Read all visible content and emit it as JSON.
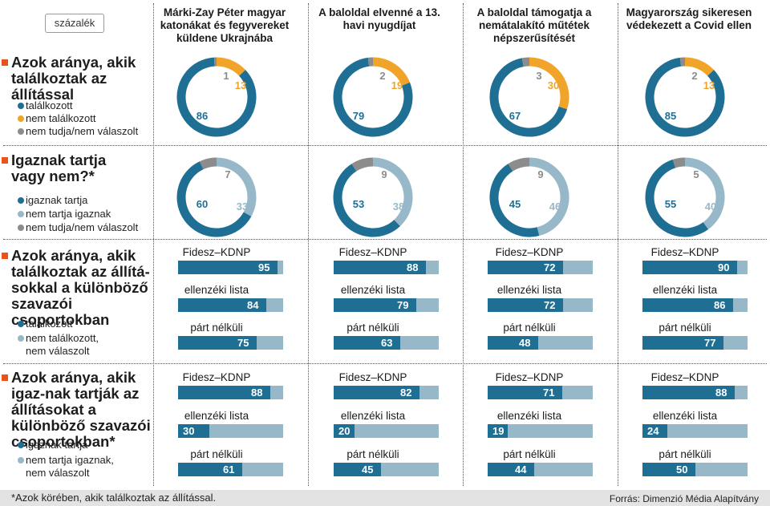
{
  "unit_label": "százalék",
  "colors": {
    "dark": "#1e6f93",
    "orange": "#f0a42a",
    "gray": "#8c8c8c",
    "light": "#97b8c9",
    "accent": "#e8541c"
  },
  "columns": [
    {
      "title": "Márki-Zay Péter magyar katonákat és fegyvereket küldene Ukrajnába"
    },
    {
      "title": "A baloldal elvenné a 13. havi nyugdíjat"
    },
    {
      "title": "A baloldal támogatja a nemátalakító műtétek népszerűsítését"
    },
    {
      "title": "Magyarország sikeresen védekezett a Covid ellen"
    }
  ],
  "sections": [
    {
      "title": "Azok aránya, akik találkoztak az állítással",
      "legend": [
        "találkozott",
        "nem találkozott",
        "nem tudja/nem válaszolt"
      ]
    },
    {
      "title": "Igaznak tartja vagy nem?*",
      "legend": [
        "igaznak tartja",
        "nem tartja igaznak",
        "nem tudja/nem válaszolt"
      ]
    },
    {
      "title": "Azok aránya, akik találkoztak az állítá-sokkal a különböző szavazói csoportokban",
      "legend": [
        "találkozott",
        "nem találkozott, nem válaszolt"
      ]
    },
    {
      "title": "Azok aránya, akik igaz-nak tartják az állításokat a különböző szavazói csoportokban*",
      "legend": [
        "igaznak tartja",
        "nem tartja igaznak, nem válaszolt"
      ]
    }
  ],
  "group_labels": [
    "Fidesz–KDNP",
    "ellenzéki lista",
    "párt nélküli"
  ],
  "chart_data": [
    {
      "type": "pie",
      "title": "Azok aránya, akik találkoztak az állítással",
      "labels": [
        "találkozott",
        "nem találkozott",
        "nem tudja/nem válaszolt"
      ],
      "categories": [
        "Márki-Zay Péter magyar katonákat és fegyvereket küldene Ukrajnába",
        "A baloldal elvenné a 13. havi nyugdíjat",
        "A baloldal támogatja a nemátalakító műtétek népszerűsítését",
        "Magyarország sikeresen védekezett a Covid ellen"
      ],
      "values": [
        [
          86,
          13,
          1
        ],
        [
          79,
          19,
          2
        ],
        [
          67,
          30,
          3
        ],
        [
          85,
          13,
          2
        ]
      ]
    },
    {
      "type": "pie",
      "title": "Igaznak tartja vagy nem?*",
      "labels": [
        "igaznak tartja",
        "nem tartja igaznak",
        "nem tudja/nem válaszolt"
      ],
      "categories": [
        "Márki-Zay Péter magyar katonákat és fegyvereket küldene Ukrajnába",
        "A baloldal elvenné a 13. havi nyugdíjat",
        "A baloldal támogatja a nemátalakító műtétek népszerűsítését",
        "Magyarország sikeresen védekezett a Covid ellen"
      ],
      "values": [
        [
          60,
          33,
          7
        ],
        [
          53,
          38,
          9
        ],
        [
          45,
          46,
          9
        ],
        [
          55,
          40,
          5
        ]
      ]
    },
    {
      "type": "bar",
      "title": "Azok aránya, akik találkoztak az állításokkal a különböző szavazói csoportokban",
      "groups": [
        "Fidesz–KDNP",
        "ellenzéki lista",
        "párt nélküli"
      ],
      "ylim": [
        0,
        100
      ],
      "values": [
        [
          95,
          84,
          75
        ],
        [
          88,
          79,
          63
        ],
        [
          72,
          72,
          48
        ],
        [
          90,
          86,
          77
        ]
      ]
    },
    {
      "type": "bar",
      "title": "Azok aránya, akik igaznak tartják az állításokat a különböző szavazói csoportokban*",
      "groups": [
        "Fidesz–KDNP",
        "ellenzéki lista",
        "párt nélküli"
      ],
      "ylim": [
        0,
        100
      ],
      "values": [
        [
          88,
          30,
          61
        ],
        [
          82,
          20,
          45
        ],
        [
          71,
          19,
          44
        ],
        [
          88,
          24,
          50
        ]
      ]
    }
  ],
  "footnote": "*Azok körében, akik találkoztak az állítással.",
  "source": "Forrás: Dimenzió Média Alapítvány"
}
